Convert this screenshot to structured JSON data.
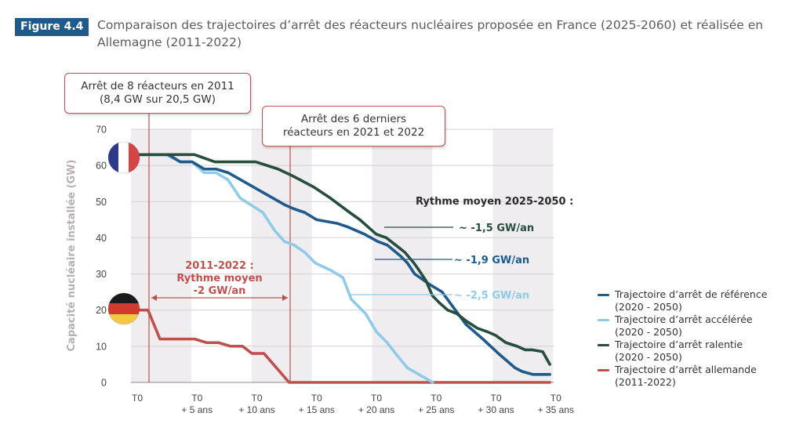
{
  "figure": {
    "badge": "Figure 4.4",
    "title": "Comparaison des trajectoires d’arrêt des réacteurs nucléaires proposée en France (2025-2060) et réalisée en Allemagne (2011-2022)"
  },
  "callouts": {
    "germany_2011": [
      "Arrêt de 8 réacteurs en 2011",
      "(8,4 GW sur 20,5 GW)"
    ],
    "germany_last": [
      "Arrêt des 6 derniers",
      "réacteurs en 2021 et 2022"
    ]
  },
  "annotations": {
    "germany_rate": [
      "2011-2022 :",
      "Rythme moyen",
      "-2 GW/an"
    ],
    "france_rate_title": "Rythme moyen 2025-2050 :",
    "rate_slowed": "~ -1,5 GW/an",
    "rate_reference": "~ -1,9 GW/an",
    "rate_accelerated": "~ -2,5 GW/an"
  },
  "icons": {
    "france_flag": "france-flag-icon",
    "germany_flag": "germany-flag-icon"
  },
  "colors": {
    "reference": "#1f5a8c",
    "accelerated": "#8fcbe8",
    "slowed": "#274e3d",
    "germany": "#c0504d",
    "band": "#efedf0",
    "badge": "#1f5a8c"
  },
  "chart_data": {
    "type": "line",
    "title": "Comparaison des trajectoires d’arrêt des réacteurs nucléaires proposée en France (2025-2060) et réalisée en Allemagne (2011-2022)",
    "xlabel": "",
    "ylabel": "Capacité nucléaire installée (GW)",
    "ylim": [
      0,
      70
    ],
    "xlim": [
      0,
      34.6
    ],
    "yticks": [
      0,
      10,
      20,
      30,
      40,
      50,
      60,
      70
    ],
    "xticks": [
      {
        "value": 0,
        "label": [
          "T0"
        ]
      },
      {
        "value": 5,
        "label": [
          "T0",
          "+ 5 ans"
        ]
      },
      {
        "value": 10,
        "label": [
          "T0",
          "+ 10 ans"
        ]
      },
      {
        "value": 15,
        "label": [
          "T0",
          "+ 15 ans"
        ]
      },
      {
        "value": 20,
        "label": [
          "T0",
          "+ 20 ans"
        ]
      },
      {
        "value": 25,
        "label": [
          "T0",
          "+ 25 ans"
        ]
      },
      {
        "value": 30,
        "label": [
          "T0",
          "+ 30 ans"
        ]
      },
      {
        "value": 35,
        "label": [
          "T0",
          "+ 35 ans"
        ]
      }
    ],
    "grid": true,
    "legend_position": "right",
    "markers": [
      {
        "name": "germany-2011-shutdown-line",
        "x": 0.9
      },
      {
        "name": "germany-last-shutdown-line",
        "x": 12.7
      }
    ],
    "series": [
      {
        "key": "reference",
        "name": "Trajectoire d’arrêt de référence",
        "period": "(2020 - 2050)",
        "points": [
          [
            0,
            63
          ],
          [
            2.6,
            63
          ],
          [
            3.6,
            61
          ],
          [
            4.6,
            61
          ],
          [
            5.6,
            59
          ],
          [
            6.6,
            59
          ],
          [
            7.6,
            58
          ],
          [
            9.2,
            55
          ],
          [
            10.8,
            52
          ],
          [
            12.4,
            49
          ],
          [
            13.1,
            48
          ],
          [
            14,
            47
          ],
          [
            15,
            45
          ],
          [
            16.7,
            44
          ],
          [
            17.6,
            43
          ],
          [
            19,
            41
          ],
          [
            20.1,
            39
          ],
          [
            20.9,
            38
          ],
          [
            22,
            35
          ],
          [
            22.6,
            33
          ],
          [
            23.2,
            30
          ],
          [
            24.5,
            27
          ],
          [
            25.5,
            25
          ],
          [
            26.6,
            20
          ],
          [
            27.5,
            16
          ],
          [
            28.9,
            12
          ],
          [
            30.2,
            8
          ],
          [
            31.6,
            4
          ],
          [
            32.2,
            3
          ],
          [
            33.1,
            2.2
          ],
          [
            34.5,
            2.2
          ]
        ]
      },
      {
        "key": "accelerated",
        "name": "Trajectoire d’arrêt accélérée",
        "period": "(2020 - 2050)",
        "points": [
          [
            0,
            63
          ],
          [
            2.4,
            63
          ],
          [
            3.6,
            61
          ],
          [
            4.6,
            61
          ],
          [
            5.6,
            58
          ],
          [
            6.6,
            58
          ],
          [
            7.6,
            56
          ],
          [
            8.6,
            51
          ],
          [
            10.5,
            47
          ],
          [
            11.5,
            42
          ],
          [
            12.3,
            39
          ],
          [
            13.1,
            38
          ],
          [
            14,
            36
          ],
          [
            14.9,
            33
          ],
          [
            16.2,
            31
          ],
          [
            17.2,
            29
          ],
          [
            17.9,
            23
          ],
          [
            19.1,
            19
          ],
          [
            20,
            14
          ],
          [
            20.9,
            11
          ],
          [
            21.6,
            8
          ],
          [
            22.6,
            4
          ],
          [
            24.2,
            1
          ],
          [
            24.7,
            0
          ]
        ]
      },
      {
        "key": "slowed",
        "name": "Trajectoire d’arrêt ralentie",
        "period": "(2020 - 2050)",
        "points": [
          [
            0,
            63
          ],
          [
            5.6,
            63
          ],
          [
            7.6,
            61
          ],
          [
            11.6,
            61
          ],
          [
            12.7,
            60
          ],
          [
            13.8,
            59
          ],
          [
            15.3,
            57
          ],
          [
            17.3,
            54
          ],
          [
            18.9,
            51
          ],
          [
            20.8,
            47
          ],
          [
            21.8,
            45
          ],
          [
            22.6,
            43
          ],
          [
            23.4,
            41
          ],
          [
            24.4,
            40
          ],
          [
            25.3,
            38
          ],
          [
            26.2,
            36
          ],
          [
            27.1,
            33
          ],
          [
            27.6,
            31
          ],
          [
            28.3,
            28
          ],
          [
            28.9,
            24
          ],
          [
            29.6,
            22
          ],
          [
            30.4,
            20
          ],
          [
            31.3,
            19
          ],
          [
            32.2,
            17
          ],
          [
            33.3,
            15
          ],
          [
            34.3,
            14
          ],
          [
            35.1,
            13
          ],
          [
            36.1,
            11
          ],
          [
            37.2,
            10
          ],
          [
            38,
            9
          ],
          [
            38.7,
            9
          ],
          [
            39.7,
            8.5
          ],
          [
            40.4,
            5
          ]
        ]
      },
      {
        "key": "germany",
        "name": "Trajectoire d’arrêt allemande",
        "period": "(2011-2022)",
        "points": [
          [
            0,
            20
          ],
          [
            0.9,
            20
          ],
          [
            1.9,
            12
          ],
          [
            4.8,
            12
          ],
          [
            5.8,
            11
          ],
          [
            6.8,
            11
          ],
          [
            7.8,
            10
          ],
          [
            8.8,
            10
          ],
          [
            9.6,
            8
          ],
          [
            10.6,
            8
          ],
          [
            12.7,
            0
          ],
          [
            34.5,
            0
          ]
        ]
      }
    ]
  }
}
